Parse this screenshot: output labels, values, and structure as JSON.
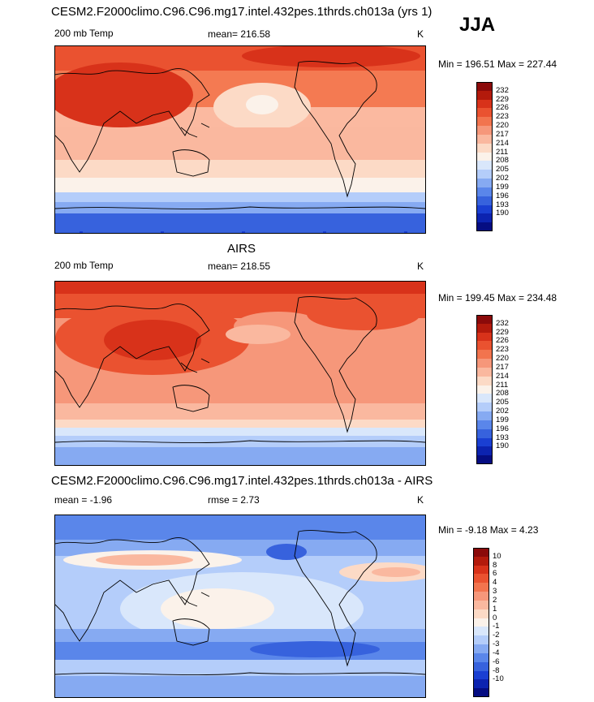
{
  "figure": {
    "season": "JJA"
  },
  "panels": [
    {
      "title": "CESM2.F2000climo.C96.C96.mg17.intel.432pes.1thrds.ch013a (yrs 1)",
      "left_label": "200 mb Temp",
      "center_label": "mean= 216.58",
      "unit": "K",
      "minmax": "Min = 196.51 Max = 227.44",
      "colorbar": {
        "levels": [
          "232",
          "229",
          "226",
          "223",
          "220",
          "217",
          "214",
          "211",
          "208",
          "205",
          "202",
          "199",
          "196",
          "193",
          "190"
        ],
        "colors": [
          "#8b0a0a",
          "#b31a0c",
          "#d8321a",
          "#ea5230",
          "#f2744e",
          "#f6977a",
          "#fab89f",
          "#fcdac6",
          "#fbf2ea",
          "#d9e7fb",
          "#b4cdfa",
          "#86aaf2",
          "#5a86ea",
          "#3762dd",
          "#1a3fd2",
          "#0c23b0",
          "#050d82"
        ]
      },
      "chart_data": {
        "type": "heatmap",
        "field": "200 mb Temperature",
        "units": "K",
        "mean": 216.58,
        "min": 196.51,
        "max": 227.44
      }
    },
    {
      "title": "AIRS",
      "left_label": "200 mb Temp",
      "center_label": "mean= 218.55",
      "unit": "K",
      "minmax": "Min = 199.45 Max = 234.48",
      "colorbar": {
        "levels": [
          "232",
          "229",
          "226",
          "223",
          "220",
          "217",
          "214",
          "211",
          "208",
          "205",
          "202",
          "199",
          "196",
          "193",
          "190"
        ],
        "colors": [
          "#8b0a0a",
          "#b31a0c",
          "#d8321a",
          "#ea5230",
          "#f2744e",
          "#f6977a",
          "#fab89f",
          "#fcdac6",
          "#fbf2ea",
          "#d9e7fb",
          "#b4cdfa",
          "#86aaf2",
          "#5a86ea",
          "#3762dd",
          "#1a3fd2",
          "#0c23b0",
          "#050d82"
        ]
      },
      "chart_data": {
        "type": "heatmap",
        "field": "200 mb Temperature",
        "units": "K",
        "mean": 218.55,
        "min": 199.45,
        "max": 234.48
      }
    },
    {
      "title": "CESM2.F2000climo.C96.C96.mg17.intel.432pes.1thrds.ch013a - AIRS",
      "left_label": "mean =   -1.96",
      "center_label": "rmse =    2.73",
      "unit": "K",
      "minmax": "Min =  -9.18 Max =    4.23",
      "colorbar": {
        "levels": [
          "10",
          "8",
          "6",
          "4",
          "3",
          "2",
          "1",
          "0",
          "-1",
          "-2",
          "-3",
          "-4",
          "-6",
          "-8",
          "-10"
        ],
        "colors": [
          "#8b0a0a",
          "#b31a0c",
          "#d8321a",
          "#ea5230",
          "#f2744e",
          "#f6977a",
          "#fab89f",
          "#fcdac6",
          "#fbf2ea",
          "#d9e7fb",
          "#b4cdfa",
          "#86aaf2",
          "#5a86ea",
          "#3762dd",
          "#1a3fd2",
          "#0c23b0",
          "#050d82"
        ]
      },
      "chart_data": {
        "type": "heatmap",
        "field": "200 mb Temperature difference (model - AIRS)",
        "units": "K",
        "mean": -1.96,
        "rmse": 2.73,
        "min": -9.18,
        "max": 4.23
      }
    }
  ]
}
